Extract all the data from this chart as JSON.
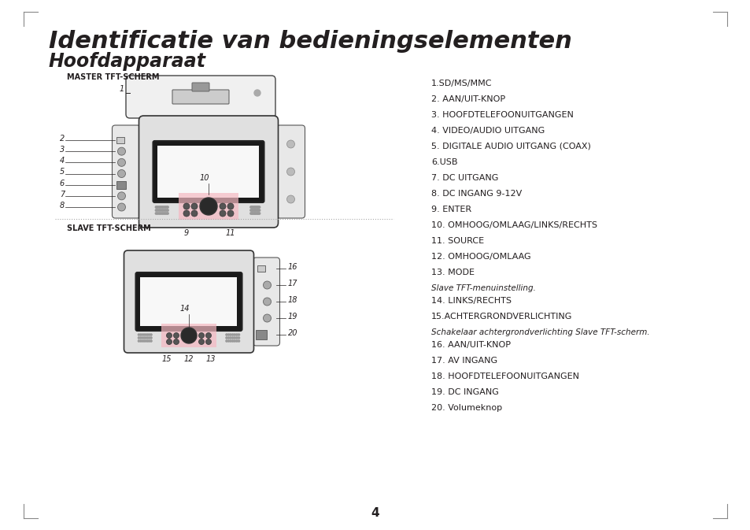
{
  "title_line1": "Identificatie van bedieningselementen",
  "title_line2": "Hoofdapparaat",
  "master_label": "MASTER TFT-SCHERM",
  "slave_label": "SLAVE TFT-SCHERM",
  "right_column_items": [
    {
      "text": "1.SD/MS/MMC",
      "bold": false
    },
    {
      "text": "2. AAN/UIT-KNOP",
      "bold": false
    },
    {
      "text": "3. HOOFDTELEFOONUITGANGEN",
      "bold": false
    },
    {
      "text": "4. VIDEO/AUDIO UITGANG",
      "bold": false
    },
    {
      "text": "5. DIGITALE AUDIO UITGANG (COAX)",
      "bold": false
    },
    {
      "text": "6.USB",
      "bold": false
    },
    {
      "text": "7. DC UITGANG",
      "bold": false
    },
    {
      "text": "8. DC INGANG 9-12V",
      "bold": false
    },
    {
      "text": "9. ENTER",
      "bold": false
    },
    {
      "text": "10. OMHOOG/OMLAAG/LINKS/RECHTS",
      "bold": false
    },
    {
      "text": "11. SOURCE",
      "bold": false
    },
    {
      "text": "12. OMHOOG/OMLAAG",
      "bold": false
    },
    {
      "text": "13. MODE",
      "bold": false
    },
    {
      "text": "Slave TFT-menuinstelling.",
      "bold": false,
      "italic": true
    },
    {
      "text": "14. LINKS/RECHTS",
      "bold": false
    },
    {
      "text": "15.ACHTERGRONDVERLICHTING",
      "bold": false
    },
    {
      "text": "Schakelaar achtergrondverlichting Slave TFT-scherm.",
      "bold": false,
      "italic": true
    },
    {
      "text": "16. AAN/UIT-KNOP",
      "bold": false
    },
    {
      "text": "17. AV INGANG",
      "bold": false
    },
    {
      "text": "18. HOOFDTELEFOONUITGANGEN",
      "bold": false
    },
    {
      "text": "19. DC INGANG",
      "bold": false
    },
    {
      "text": "20. Volumeknop",
      "bold": false
    }
  ],
  "page_number": "4",
  "bg_color": "#ffffff",
  "text_color": "#231f20",
  "gray_text_color": "#808080",
  "pink_color": "#f4b8c1"
}
